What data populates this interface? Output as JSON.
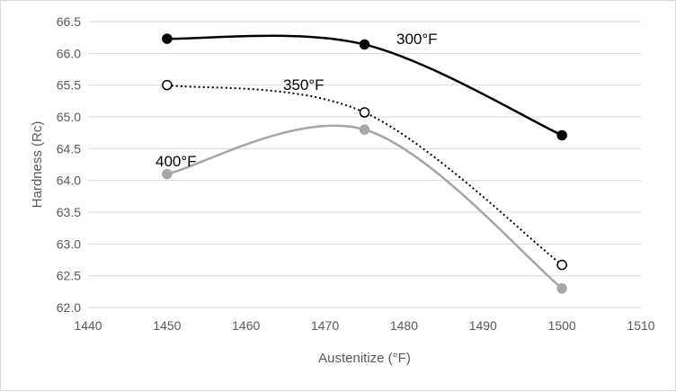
{
  "chart_data": {
    "type": "line",
    "title": "",
    "xlabel": "Austenitize (°F)",
    "ylabel": "Hardness (Rc)",
    "xlim": [
      1440,
      1510
    ],
    "ylim": [
      62.0,
      66.5
    ],
    "xticks": [
      1440,
      1450,
      1460,
      1470,
      1480,
      1490,
      1500,
      1510
    ],
    "yticks": [
      "62.0",
      "62.5",
      "63.0",
      "63.5",
      "64.0",
      "64.5",
      "65.0",
      "65.5",
      "66.0",
      "66.5"
    ],
    "grid": "horizontal",
    "legend": "none (inline labels)",
    "series": [
      {
        "name": "300°F",
        "x": [
          1450,
          1475,
          1500
        ],
        "values": [
          66.23,
          66.14,
          64.71
        ],
        "color": "#000000",
        "style": "solid",
        "marker": "filled"
      },
      {
        "name": "350°F",
        "x": [
          1450,
          1475,
          1500
        ],
        "values": [
          65.5,
          65.07,
          62.67
        ],
        "color": "#000000",
        "style": "dotted",
        "marker": "open"
      },
      {
        "name": "400°F",
        "x": [
          1450,
          1475,
          1500
        ],
        "values": [
          64.1,
          64.8,
          62.3
        ],
        "color": "#a6a6a6",
        "style": "solid",
        "marker": "filled"
      }
    ]
  }
}
